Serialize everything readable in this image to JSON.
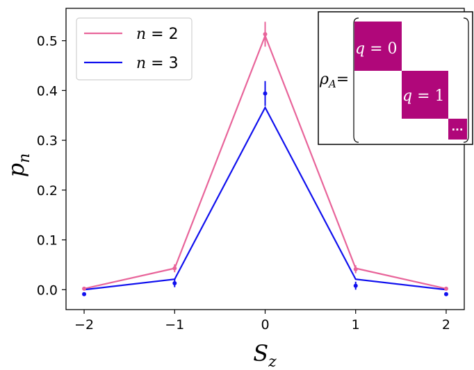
{
  "chart_data": {
    "type": "line",
    "x": [
      -2,
      -1,
      0,
      1,
      2
    ],
    "xlabel": "S",
    "xlabel_sub": "z",
    "ylabel": "p",
    "ylabel_sub": "n",
    "xlim": [
      -2.2,
      2.2
    ],
    "ylim": [
      -0.04,
      0.565
    ],
    "x_ticks": [
      -2,
      -1,
      0,
      1,
      2
    ],
    "x_tick_labels": [
      "−2",
      "−1",
      "0",
      "1",
      "2"
    ],
    "y_ticks": [
      0.0,
      0.1,
      0.2,
      0.3,
      0.4,
      0.5
    ],
    "y_tick_labels": [
      "0.0",
      "0.1",
      "0.2",
      "0.3",
      "0.4",
      "0.5"
    ],
    "legend_position": "top-left",
    "grid": false,
    "series": [
      {
        "name": "n = 2",
        "legend_var": "n",
        "legend_rest": " = 2",
        "color": "#e8649a",
        "values": [
          0.002,
          0.043,
          0.51,
          0.043,
          0.002
        ],
        "points": [
          {
            "x": -2,
            "y": 0.002,
            "err": 0.003
          },
          {
            "x": -1,
            "y": 0.043,
            "err": 0.008
          },
          {
            "x": 0,
            "y": 0.513,
            "err": 0.025
          },
          {
            "x": 1,
            "y": 0.041,
            "err": 0.008
          },
          {
            "x": 2,
            "y": 0.002,
            "err": 0.003
          }
        ]
      },
      {
        "name": "n = 3",
        "legend_var": "n",
        "legend_rest": " = 3",
        "color": "#1010ee",
        "values": [
          0.0,
          0.021,
          0.366,
          0.021,
          0.0
        ],
        "points": [
          {
            "x": -2,
            "y": -0.009,
            "err": 0.003
          },
          {
            "x": -1,
            "y": 0.013,
            "err": 0.008
          },
          {
            "x": 0,
            "y": 0.394,
            "err": 0.025
          },
          {
            "x": 1,
            "y": 0.008,
            "err": 0.008
          },
          {
            "x": 2,
            "y": -0.009,
            "err": 0.003
          }
        ]
      }
    ],
    "inset": {
      "rho": "ρ",
      "rho_sub": "A",
      "equals": "=",
      "block_color": "#b0077a",
      "blocks": [
        {
          "var": "q",
          "rest": " = 0"
        },
        {
          "var": "q",
          "rest": " = 1"
        },
        {
          "var": "",
          "rest": "···"
        }
      ]
    }
  }
}
